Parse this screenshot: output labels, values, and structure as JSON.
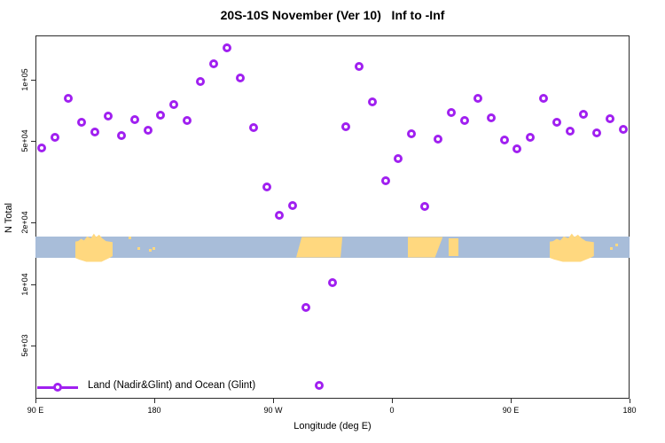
{
  "title": "20S-10S November (Ver 10)   Inf to -Inf",
  "axes": {
    "x": {
      "label": "Longitude (deg E)",
      "ticks": [
        {
          "lon": 90,
          "label": "90 E"
        },
        {
          "lon": 180,
          "label": "180"
        },
        {
          "lon": 270,
          "label": "90 W"
        },
        {
          "lon": 360,
          "label": "0"
        },
        {
          "lon": 450,
          "label": "90 E"
        },
        {
          "lon": 540,
          "label": "180"
        }
      ]
    },
    "y": {
      "label": "N Total",
      "scale": "log",
      "ticks": [
        {
          "value": 100000,
          "label": "1e+05"
        },
        {
          "value": 50000,
          "label": "5e+04"
        },
        {
          "value": 20000,
          "label": "2e+04"
        },
        {
          "value": 10000,
          "label": "1e+04"
        },
        {
          "value": 5000,
          "label": "5e+03"
        }
      ]
    }
  },
  "legend": {
    "label": "Land (Nadir&Glint) and Ocean (Glint)"
  },
  "colors": {
    "marker": "#A020F0",
    "ocean": "#A8BDD9",
    "land": "#FFD87F"
  },
  "chart_data": {
    "type": "scatter",
    "title": "20S-10S November (Ver 10)   Inf to -Inf",
    "xlabel": "Longitude (deg E)",
    "ylabel": "N Total",
    "x_note": "longitude in continuous deg E starting at 90E; axis spans 90E→180→90W→0→90E→180",
    "x_range": [
      90,
      540
    ],
    "y_range_log": [
      5000,
      150000
    ],
    "legend": [
      "Land (Nadir&Glint) and Ocean (Glint)"
    ],
    "points": [
      [
        95,
        46400
      ],
      [
        105,
        52200
      ],
      [
        115,
        81100
      ],
      [
        125,
        61900
      ],
      [
        135,
        55500
      ],
      [
        145,
        66400
      ],
      [
        155,
        53300
      ],
      [
        165,
        63800
      ],
      [
        175,
        56600
      ],
      [
        185,
        67000
      ],
      [
        195,
        75600
      ],
      [
        205,
        63200
      ],
      [
        215,
        98000
      ],
      [
        225,
        120000
      ],
      [
        235,
        143000
      ],
      [
        245,
        102000
      ],
      [
        255,
        58300
      ],
      [
        265,
        29900
      ],
      [
        275,
        21700
      ],
      [
        285,
        24200
      ],
      [
        295,
        7680
      ],
      [
        305,
        3190
      ],
      [
        315,
        10200
      ],
      [
        325,
        58900
      ],
      [
        335,
        116000
      ],
      [
        345,
        77900
      ],
      [
        355,
        32000
      ],
      [
        365,
        41100
      ],
      [
        375,
        54400
      ],
      [
        385,
        24000
      ],
      [
        395,
        51200
      ],
      [
        405,
        69100
      ],
      [
        415,
        63200
      ],
      [
        425,
        81100
      ],
      [
        435,
        65100
      ],
      [
        445,
        50700
      ],
      [
        455,
        45900
      ],
      [
        465,
        52200
      ],
      [
        475,
        81100
      ],
      [
        485,
        61900
      ],
      [
        495,
        56000
      ],
      [
        505,
        67700
      ],
      [
        515,
        54900
      ],
      [
        525,
        64400
      ],
      [
        535,
        57200
      ]
    ],
    "map_strip": {
      "description": "world coastline strip for 20S-10S latitude band drawn across plot",
      "value_top": 17000,
      "value_bottom": 13500,
      "land_patches": [
        {
          "name": "australia",
          "kind": "australia",
          "lon": [
            120,
            148.5
          ]
        },
        {
          "name": "melanesia-islands",
          "kind": "specks",
          "specks": [
            [
              160.3,
              0
            ],
            [
              167,
              12
            ],
            [
              175.8,
              14
            ],
            [
              178.5,
              12
            ]
          ]
        },
        {
          "name": "south-america",
          "kind": "sam",
          "lon": [
            287.5,
            322.5
          ]
        },
        {
          "name": "africa",
          "kind": "afr",
          "lon": [
            372,
            398.5
          ]
        },
        {
          "name": "madagascar",
          "kind": "rect",
          "lon": [
            403,
            410.5
          ]
        },
        {
          "name": "australia-repeat",
          "kind": "australia",
          "lon": [
            479.5,
            513
          ]
        },
        {
          "name": "melanesia-islands-repeat",
          "kind": "specks",
          "specks": [
            [
              525,
              12
            ],
            [
              529,
              8
            ]
          ]
        }
      ]
    }
  }
}
